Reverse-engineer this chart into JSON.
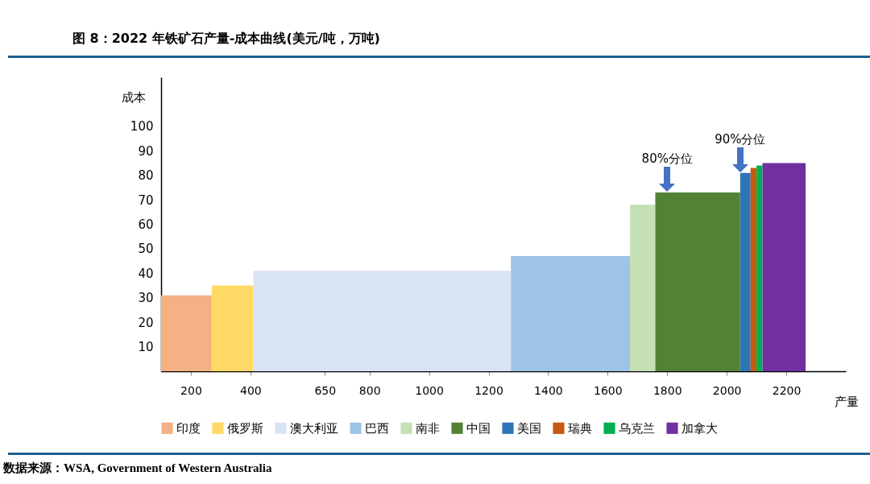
{
  "chart_data": {
    "type": "area",
    "title": "图 8：2022 年铁矿石产量-成本曲线(美元/吨，万吨)",
    "xlabel": "产量",
    "ylabel": "成本",
    "annotations": [
      "数据来源：WSA, Government of Western Australia",
      {
        "text": "80%分位",
        "x": 1800,
        "y": 73
      },
      {
        "text": "90%分位",
        "x": 2045,
        "y": 81
      }
    ],
    "series": [
      {
        "name": "印度",
        "color": "#f4b183",
        "x": [
          100,
          270
        ],
        "values": [
          31,
          31
        ]
      },
      {
        "name": "俄罗斯",
        "color": "#ffd966",
        "x": [
          270,
          410
        ],
        "values": [
          35,
          35
        ]
      },
      {
        "name": "澳大利亚",
        "color": "#dae3f3",
        "x": [
          410,
          1275
        ],
        "values": [
          41,
          41
        ]
      },
      {
        "name": "巴西",
        "color": "#9dc3e6",
        "x": [
          1275,
          1675
        ],
        "values": [
          47,
          47
        ]
      },
      {
        "name": "南非",
        "color": "#c5e0b4",
        "x": [
          1675,
          1760
        ],
        "values": [
          68,
          68
        ]
      },
      {
        "name": "中国",
        "color": "#548235",
        "x": [
          1760,
          2045
        ],
        "values": [
          73,
          73
        ]
      },
      {
        "name": "美国",
        "color": "#2e75b6",
        "x": [
          2045,
          2080
        ],
        "values": [
          81,
          81
        ]
      },
      {
        "name": "瑞典",
        "color": "#c55a11",
        "x": [
          2080,
          2100
        ],
        "values": [
          83,
          83
        ]
      },
      {
        "name": "乌克兰",
        "color": "#00b050",
        "x": [
          2100,
          2120
        ],
        "values": [
          84,
          84
        ]
      },
      {
        "name": "加拿大",
        "color": "#7030a0",
        "x": [
          2120,
          2265
        ],
        "values": [
          85,
          85
        ]
      }
    ],
    "xlim": [
      100,
      2400
    ],
    "ylim": [
      0,
      120
    ],
    "xticks": [
      200,
      400,
      650,
      800,
      1000,
      1200,
      1400,
      1600,
      1800,
      2000,
      2200
    ],
    "yticks": [
      10,
      20,
      30,
      40,
      50,
      60,
      70,
      80,
      90,
      100
    ],
    "grid": false,
    "legend": "bottom"
  }
}
